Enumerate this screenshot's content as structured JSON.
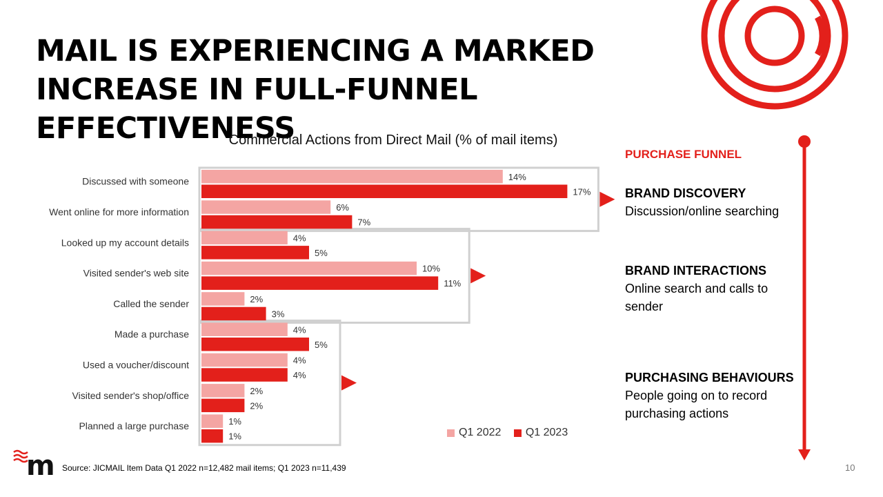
{
  "title": {
    "line1": "MAIL IS EXPERIENCING A MARKED",
    "line2": "INCREASE IN FULL-FUNNEL EFFECTIVENESS"
  },
  "chart_data": {
    "type": "bar",
    "orientation": "horizontal",
    "title": "Commercial Actions from Direct Mail (% of mail items)",
    "categories": [
      "Discussed with someone",
      "Went online for more information",
      "Looked up my account details",
      "Visited sender's web site",
      "Called the sender",
      "Made a purchase",
      "Used a voucher/discount",
      "Visited sender's shop/office",
      "Planned a large purchase"
    ],
    "series": [
      {
        "name": "Q1 2022",
        "color": "#f4a5a3",
        "values": [
          14,
          6,
          4,
          10,
          2,
          4,
          4,
          2,
          1
        ],
        "labels": [
          "14%",
          "6%",
          "4%",
          "10%",
          "2%",
          "4%",
          "4%",
          "2%",
          "1%"
        ]
      },
      {
        "name": "Q1 2023",
        "color": "#e3201b",
        "values": [
          17,
          7,
          5,
          11,
          3,
          5,
          4,
          2,
          1
        ],
        "labels": [
          "17%",
          "7%",
          "5%",
          "11%",
          "3%",
          "5%",
          "4%",
          "2%",
          "1%"
        ]
      }
    ],
    "xlim": [
      0,
      17.4
    ],
    "legend_position": "bottom-right",
    "grid": false,
    "groups": [
      {
        "stage": "BRAND DISCOVERY",
        "from": 0,
        "to": 1
      },
      {
        "stage": "BRAND INTERACTIONS",
        "from": 2,
        "to": 4
      },
      {
        "stage": "PURCHASING BEHAVIOURS",
        "from": 5,
        "to": 8
      }
    ]
  },
  "funnel": {
    "heading": "PURCHASE FUNNEL",
    "stages": [
      {
        "title": "BRAND DISCOVERY",
        "desc": "Discussion/online searching"
      },
      {
        "title": "BRAND INTERACTIONS",
        "desc": "Online search and calls to sender"
      },
      {
        "title": "PURCHASING BEHAVIOURS",
        "desc": "People going on to record purchasing actions"
      }
    ]
  },
  "source": "Source: JICMAIL Item Data Q1 2022 n=12,482 mail items; Q1 2023 n=11,439",
  "page_number": "10",
  "colors": {
    "accent": "#e3201b",
    "light": "#f4a5a3",
    "box": "#d0d0d0"
  },
  "icons": {
    "logo": "royal-mail-m-logo",
    "rings": "concentric-rings-logo"
  }
}
